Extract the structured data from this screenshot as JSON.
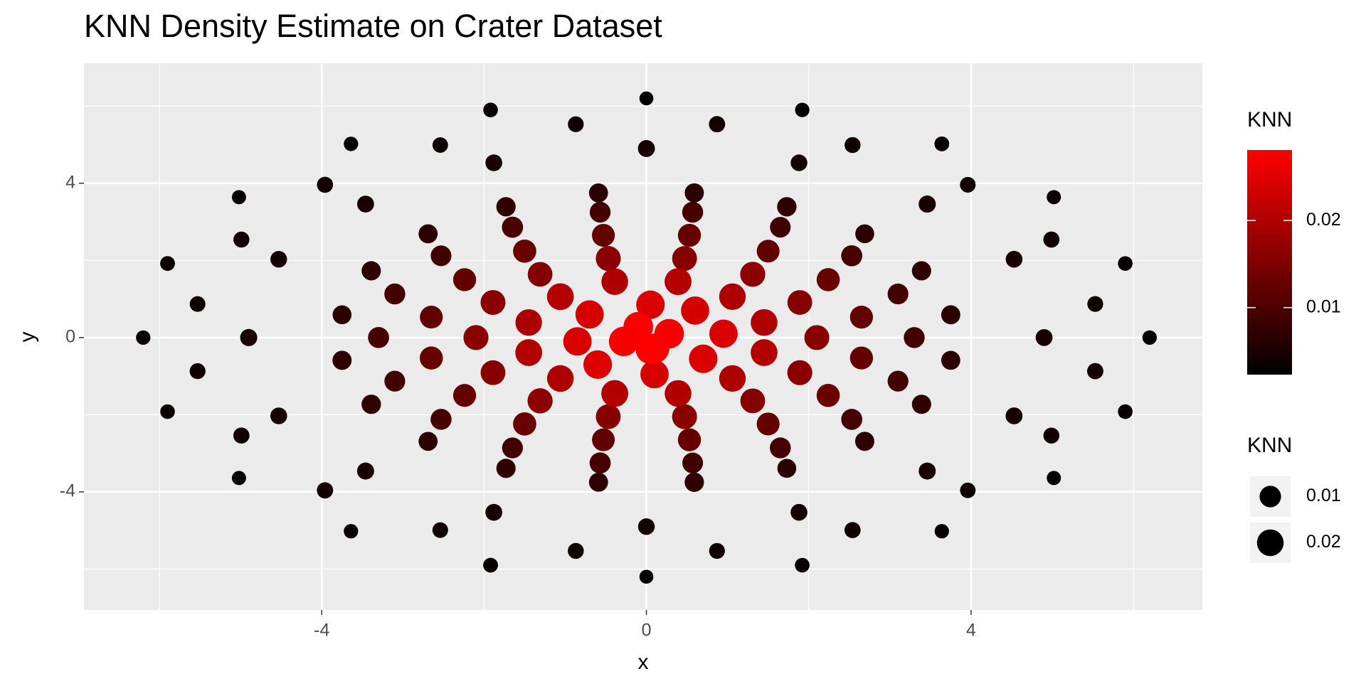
{
  "chart_data": {
    "type": "scatter",
    "title": "KNN Density Estimate on Crater Dataset",
    "xlabel": "x",
    "ylabel": "y",
    "xlim": [
      -6.93,
      6.85
    ],
    "ylim": [
      -7.06,
      7.11
    ],
    "xticks": [
      -4,
      0,
      4
    ],
    "yticks": [
      -4,
      0,
      4
    ],
    "x_minor_ticks": [
      -6,
      -2,
      2,
      6
    ],
    "y_minor_ticks": [
      -6,
      -2,
      2,
      6
    ],
    "grid": true,
    "color_scale": {
      "title": "KNN",
      "lim": [
        0.0023,
        0.0281
      ],
      "ticks": [
        0.01,
        0.02
      ],
      "low": "#000000",
      "high": "#ff0000"
    },
    "size_legend": {
      "title": "KNN",
      "values": [
        0.01,
        0.02
      ]
    },
    "x": [
      6.2,
      5.9,
      5.02,
      3.64,
      1.92,
      0,
      -1.92,
      -3.64,
      -5.02,
      -5.9,
      -6.2,
      -5.9,
      -5.02,
      -3.64,
      -1.92,
      0,
      1.92,
      3.64,
      5.02,
      5.9,
      5.53,
      4.99,
      3.96,
      2.54,
      0.87,
      -0.87,
      -2.54,
      -3.96,
      -4.99,
      -5.53,
      -5.53,
      -4.99,
      -3.96,
      -2.54,
      -0.87,
      0.87,
      2.54,
      3.96,
      4.99,
      5.53,
      4.9,
      4.53,
      3.46,
      1.88,
      0,
      -1.88,
      -3.46,
      -4.53,
      -4.9,
      -4.53,
      -3.46,
      -1.88,
      0,
      1.88,
      3.46,
      4.53,
      3.75,
      3.39,
      2.69,
      1.73,
      0.59,
      -0.59,
      -1.73,
      -2.69,
      -3.39,
      -3.75,
      -3.75,
      -3.39,
      -2.69,
      -1.73,
      -0.59,
      0.59,
      1.73,
      2.69,
      3.39,
      3.75,
      3.3,
      3.1,
      2.53,
      1.65,
      0.57,
      -0.57,
      -1.65,
      -2.53,
      -3.1,
      -3.3,
      -3.1,
      -2.53,
      -1.65,
      -0.57,
      0.57,
      1.65,
      2.53,
      3.1,
      2.65,
      2.24,
      1.5,
      0.53,
      -0.53,
      -1.5,
      -2.24,
      -2.65,
      -2.65,
      -2.24,
      -1.5,
      -0.53,
      0.53,
      1.5,
      2.24,
      2.65,
      2.1,
      1.89,
      1.31,
      0.47,
      -0.47,
      -1.31,
      -1.89,
      -2.1,
      -1.89,
      -1.31,
      -0.47,
      0.47,
      1.31,
      1.89,
      1.45,
      1.06,
      0.39,
      -0.39,
      -1.06,
      -1.45,
      -1.45,
      -1.06,
      -0.39,
      0.39,
      1.06,
      1.45,
      0.95,
      0.6,
      0.05,
      -0.7,
      -0.85,
      -0.6,
      0.1,
      0.7,
      0.28,
      -0.1,
      -0.28,
      0.1,
      0.05
    ],
    "values": [
      0,
      1.92,
      3.64,
      5.02,
      5.9,
      6.2,
      5.9,
      5.02,
      3.64,
      1.92,
      0,
      -1.92,
      -3.64,
      -5.02,
      -5.9,
      -6.2,
      -5.9,
      -5.02,
      -3.64,
      -1.92,
      0.87,
      2.54,
      3.96,
      4.99,
      5.53,
      5.53,
      4.99,
      3.96,
      2.54,
      0.87,
      -0.87,
      -2.54,
      -3.96,
      -4.99,
      -5.53,
      -5.53,
      -4.99,
      -3.96,
      -2.54,
      -0.87,
      0,
      2.03,
      3.46,
      4.53,
      4.9,
      4.53,
      3.46,
      2.03,
      0,
      -2.03,
      -3.46,
      -4.53,
      -4.9,
      -4.53,
      -3.46,
      -2.03,
      0.59,
      1.73,
      2.69,
      3.39,
      3.75,
      3.75,
      3.39,
      2.69,
      1.73,
      0.59,
      -0.59,
      -1.73,
      -2.69,
      -3.39,
      -3.75,
      -3.75,
      -3.39,
      -2.69,
      -1.73,
      -0.59,
      0,
      1.13,
      2.12,
      2.86,
      3.25,
      3.25,
      2.86,
      2.12,
      1.13,
      0,
      -1.13,
      -2.12,
      -2.86,
      -3.25,
      -3.25,
      -2.86,
      -2.12,
      -1.13,
      0.53,
      1.5,
      2.24,
      2.65,
      2.65,
      2.24,
      1.5,
      0.53,
      -0.53,
      -1.5,
      -2.24,
      -2.65,
      -2.65,
      -2.24,
      -1.5,
      -0.53,
      0,
      0.91,
      1.64,
      2.05,
      2.05,
      1.64,
      0.91,
      0,
      -0.91,
      -1.64,
      -2.05,
      -2.05,
      -1.64,
      -0.91,
      0.39,
      1.06,
      1.45,
      1.45,
      1.06,
      0.39,
      -0.39,
      -1.06,
      -1.45,
      -1.45,
      -1.06,
      -0.39,
      0.1,
      0.7,
      0.85,
      0.6,
      -0.1,
      -0.7,
      -0.95,
      -0.55,
      0.1,
      0.28,
      -0.1,
      -0.28,
      -0.3
    ],
    "knn": [
      0.003,
      0.0031,
      0.0029,
      0.0032,
      0.003,
      0.0028,
      0.0031,
      0.003,
      0.0029,
      0.0032,
      0.003,
      0.0031,
      0.0029,
      0.003,
      0.0032,
      0.0028,
      0.0031,
      0.003,
      0.0029,
      0.0031,
      0.0038,
      0.004,
      0.0037,
      0.0039,
      0.0041,
      0.0038,
      0.0036,
      0.004,
      0.0039,
      0.0037,
      0.0038,
      0.004,
      0.0041,
      0.0037,
      0.0039,
      0.0038,
      0.004,
      0.0036,
      0.0039,
      0.0041,
      0.0046,
      0.0045,
      0.0048,
      0.0044,
      0.0047,
      0.0045,
      0.0046,
      0.0044,
      0.0048,
      0.0045,
      0.0047,
      0.0046,
      0.0044,
      0.0045,
      0.0047,
      0.0046,
      0.0068,
      0.007,
      0.0066,
      0.0072,
      0.0069,
      0.0067,
      0.0071,
      0.0068,
      0.007,
      0.0066,
      0.0069,
      0.0072,
      0.0067,
      0.007,
      0.0068,
      0.0071,
      0.0066,
      0.0069,
      0.007,
      0.0067,
      0.0092,
      0.009,
      0.0095,
      0.0088,
      0.0093,
      0.0091,
      0.0096,
      0.0089,
      0.0092,
      0.0094,
      0.009,
      0.0093,
      0.0091,
      0.0095,
      0.0089,
      0.0092,
      0.0094,
      0.009,
      0.0124,
      0.0128,
      0.0121,
      0.0126,
      0.0123,
      0.0129,
      0.0125,
      0.0122,
      0.0127,
      0.0124,
      0.013,
      0.0121,
      0.0126,
      0.0123,
      0.0128,
      0.0125,
      0.0162,
      0.0158,
      0.0165,
      0.016,
      0.0163,
      0.0157,
      0.0161,
      0.0164,
      0.0159,
      0.0166,
      0.016,
      0.0162,
      0.0158,
      0.0163,
      0.0202,
      0.0198,
      0.0205,
      0.02,
      0.0203,
      0.0197,
      0.0204,
      0.0199,
      0.0206,
      0.0201,
      0.0198,
      0.0203,
      0.0242,
      0.0238,
      0.0245,
      0.024,
      0.0243,
      0.0247,
      0.0239,
      0.0244,
      0.0274,
      0.0276,
      0.0272,
      0.0277,
      0.028
    ]
  }
}
